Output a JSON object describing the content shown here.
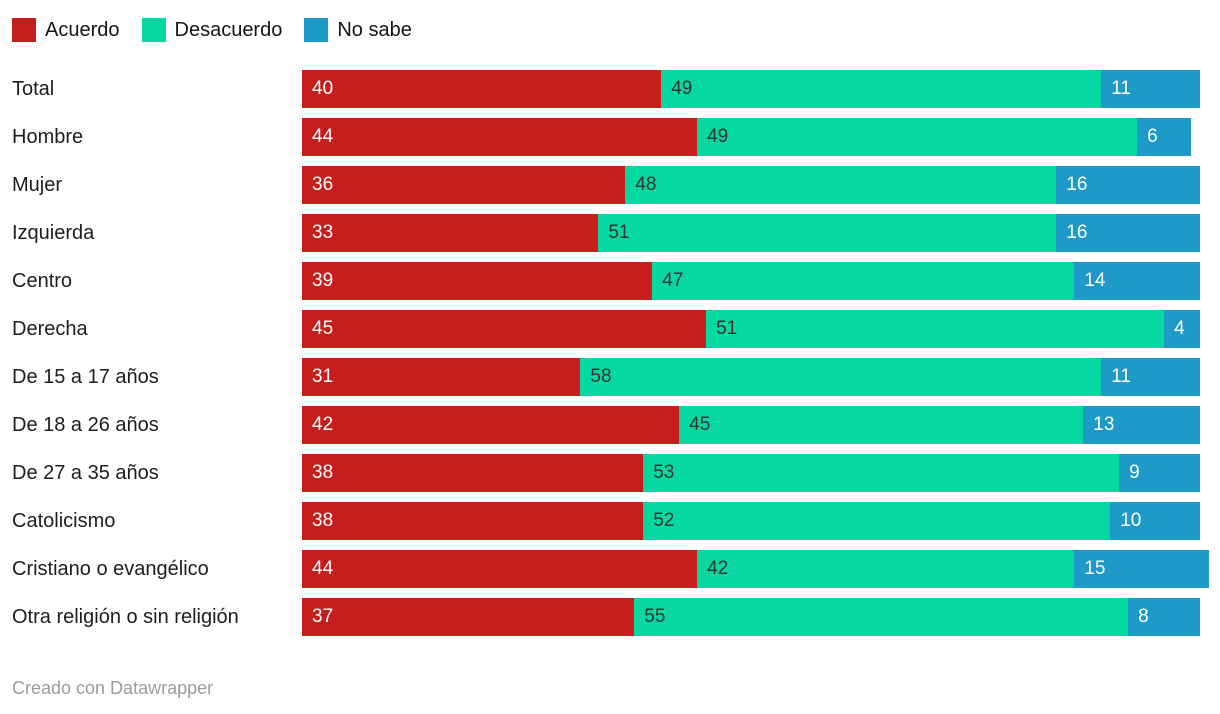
{
  "legend": {
    "items": [
      {
        "label": "Acuerdo",
        "color": "#c71e1d",
        "text_color": "#ffffff"
      },
      {
        "label": "Desacuerdo",
        "color": "#05d8a1",
        "text_color": "#333333"
      },
      {
        "label": "No sabe",
        "color": "#1e9ac9",
        "text_color": "#ffffff"
      }
    ]
  },
  "chart_data": {
    "type": "bar",
    "subtype": "stacked-horizontal",
    "unit": "percent",
    "xlim": [
      0,
      100
    ],
    "legend_position": "top",
    "grid": false,
    "value_labels": "inside-left",
    "categories": [
      "Total",
      "Hombre",
      "Mujer",
      "Izquierda",
      "Centro",
      "Derecha",
      "De 15 a 17 años",
      "De 18 a 26 años",
      "De 27 a 35 años",
      "Catolicismo",
      "Cristiano o evangélico",
      "Otra religión o sin religión"
    ],
    "series": [
      {
        "name": "Acuerdo",
        "color": "#c71e1d",
        "text_color": "#ffffff",
        "values": [
          40,
          44,
          36,
          33,
          39,
          45,
          31,
          42,
          38,
          38,
          44,
          37
        ]
      },
      {
        "name": "Desacuerdo",
        "color": "#05d8a1",
        "text_color": "#333333",
        "values": [
          49,
          49,
          48,
          51,
          47,
          51,
          58,
          45,
          53,
          52,
          42,
          55
        ]
      },
      {
        "name": "No sabe",
        "color": "#1e9ac9",
        "text_color": "#ffffff",
        "values": [
          11,
          6,
          16,
          16,
          14,
          4,
          11,
          13,
          9,
          10,
          15,
          8
        ]
      }
    ]
  },
  "footer": {
    "credit": "Creado con Datawrapper"
  }
}
